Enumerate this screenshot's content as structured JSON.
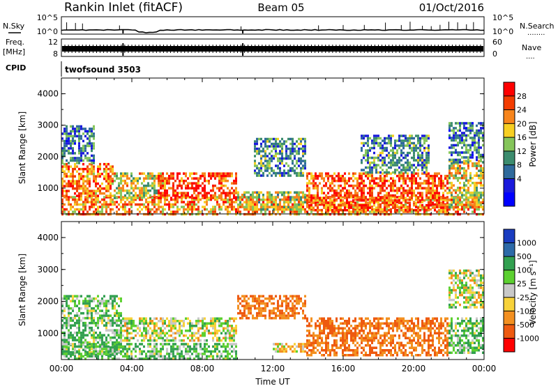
{
  "header": {
    "station": "Rankin Inlet (fitACF)",
    "beam": "Beam 05",
    "date": "01/Oct/2016"
  },
  "sky_noise": {
    "left_label": "N.Sky",
    "left_ticks": [
      "10^5",
      "10^0"
    ],
    "right_label": "N.Search",
    "right_ticks": [
      "10^5",
      "10^0"
    ],
    "right_dots": "........"
  },
  "frequency": {
    "left_label_1": "Freq.",
    "left_label_2": "[MHz]",
    "left_ticks": [
      "12",
      "8"
    ],
    "right_label": "Nave",
    "right_ticks": [
      "60",
      "0"
    ],
    "right_dots": "...."
  },
  "cpid": {
    "label": "CPID",
    "value": "twofsound 3503"
  },
  "chart_data": [
    {
      "type": "heatmap",
      "quantity": "Power",
      "ylabel": "Slant Range [km]",
      "ylim": [
        180,
        4500
      ],
      "yticks": [
        1000,
        2000,
        3000,
        4000
      ],
      "x_tick_labels": [
        "00:00",
        "04:00",
        "08:00",
        "12:00",
        "16:00",
        "20:00",
        "00:00"
      ],
      "colorbar": {
        "label": "Power [dB]",
        "tick_labels": [
          "28",
          "24",
          "20",
          "16",
          "12",
          "8",
          "4"
        ],
        "colors": [
          "#ff0000",
          "#f33c00",
          "#f7851c",
          "#f7cf22",
          "#85c55a",
          "#3c8c6e",
          "#2f6a9c",
          "#1a1adc",
          "#0000ff"
        ]
      },
      "echo_regions": [
        {
          "t": [
            0.0,
            24.0
          ],
          "r": [
            200,
            750
          ],
          "level": 0.75
        },
        {
          "t": [
            0.0,
            3.0
          ],
          "r": [
            750,
            1800
          ],
          "level": 0.8
        },
        {
          "t": [
            3.0,
            6.0
          ],
          "r": [
            700,
            1500
          ],
          "level": 0.6
        },
        {
          "t": [
            5.5,
            10.0
          ],
          "r": [
            700,
            1500
          ],
          "level": 0.9
        },
        {
          "t": [
            10.0,
            14.0
          ],
          "r": [
            300,
            900
          ],
          "level": 0.55
        },
        {
          "t": [
            14.0,
            22.0
          ],
          "r": [
            300,
            1500
          ],
          "level": 0.85
        },
        {
          "t": [
            22.0,
            24.0
          ],
          "r": [
            400,
            1900
          ],
          "level": 0.6
        },
        {
          "t": [
            11.0,
            14.0
          ],
          "r": [
            1400,
            2600
          ],
          "level": 0.35
        },
        {
          "t": [
            17.0,
            21.0
          ],
          "r": [
            1500,
            2700
          ],
          "level": 0.35
        },
        {
          "t": [
            0.0,
            2.0
          ],
          "r": [
            1800,
            3000
          ],
          "level": 0.3
        },
        {
          "t": [
            22.0,
            24.0
          ],
          "r": [
            1800,
            3100
          ],
          "level": 0.3
        }
      ]
    },
    {
      "type": "heatmap",
      "quantity": "Velocity",
      "ylabel": "Slant Range [km]",
      "xlabel": "Time UT",
      "ylim": [
        180,
        4500
      ],
      "yticks": [
        1000,
        2000,
        3000,
        4000
      ],
      "x_tick_labels": [
        "00:00",
        "04:00",
        "08:00",
        "12:00",
        "16:00",
        "20:00",
        "00:00"
      ],
      "colorbar": {
        "label": "Velocity [m s⁻¹]",
        "tick_labels": [
          "1000",
          "500",
          "100",
          "25",
          "-25",
          "-100",
          "-500",
          "-1000"
        ],
        "colors": [
          "#1a3cc0",
          "#2d6aa8",
          "#32a050",
          "#5cd030",
          "#c8c8c8",
          "#f7d23a",
          "#f39020",
          "#ee5a10",
          "#ff0000"
        ]
      },
      "echo_regions": [
        {
          "t": [
            0.0,
            3.5
          ],
          "r": [
            300,
            2200
          ],
          "velocity": 100
        },
        {
          "t": [
            3.5,
            10.0
          ],
          "r": [
            800,
            1500
          ],
          "velocity": 0
        },
        {
          "t": [
            0.0,
            10.0
          ],
          "r": [
            200,
            700
          ],
          "velocity": 100
        },
        {
          "t": [
            10.0,
            14.0
          ],
          "r": [
            1500,
            2200
          ],
          "velocity": -500
        },
        {
          "t": [
            12.0,
            14.0
          ],
          "r": [
            400,
            700
          ],
          "velocity": -100
        },
        {
          "t": [
            14.0,
            22.0
          ],
          "r": [
            300,
            1500
          ],
          "velocity": -500
        },
        {
          "t": [
            22.0,
            24.0
          ],
          "r": [
            1800,
            3000
          ],
          "velocity": 0
        },
        {
          "t": [
            22.0,
            24.0
          ],
          "r": [
            400,
            1500
          ],
          "velocity": 100
        }
      ]
    }
  ]
}
